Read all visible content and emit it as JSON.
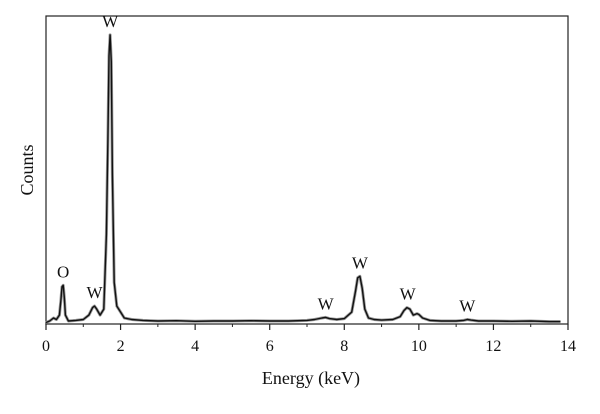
{
  "chart_data": {
    "type": "line",
    "title": "",
    "xlabel": "Energy (keV)",
    "ylabel": "Counts",
    "xlim": [
      0,
      14
    ],
    "ylim": [
      0,
      100
    ],
    "x_ticks": [
      "0",
      "2",
      "4",
      "6",
      "8",
      "10",
      "12",
      "14"
    ],
    "grid": false,
    "legend": "none",
    "line_color": "#111111",
    "series": [
      {
        "values": [
          [
            0.0,
            0.5
          ],
          [
            0.1,
            1.0
          ],
          [
            0.2,
            2.0
          ],
          [
            0.28,
            1.5
          ],
          [
            0.36,
            3.0
          ],
          [
            0.4,
            8.0
          ],
          [
            0.43,
            12.5
          ],
          [
            0.46,
            13.0
          ],
          [
            0.49,
            9.0
          ],
          [
            0.52,
            3.0
          ],
          [
            0.6,
            1.0
          ],
          [
            0.8,
            1.2
          ],
          [
            1.0,
            1.5
          ],
          [
            1.15,
            3.0
          ],
          [
            1.25,
            5.5
          ],
          [
            1.3,
            6.0
          ],
          [
            1.36,
            5.0
          ],
          [
            1.45,
            3.0
          ],
          [
            1.55,
            5.0
          ],
          [
            1.62,
            30.0
          ],
          [
            1.66,
            62.0
          ],
          [
            1.69,
            90.0
          ],
          [
            1.72,
            97.0
          ],
          [
            1.75,
            88.0
          ],
          [
            1.78,
            50.0
          ],
          [
            1.83,
            14.0
          ],
          [
            1.9,
            6.0
          ],
          [
            2.0,
            4.0
          ],
          [
            2.1,
            2.0
          ],
          [
            2.3,
            1.5
          ],
          [
            2.6,
            1.2
          ],
          [
            3.0,
            1.0
          ],
          [
            3.5,
            1.1
          ],
          [
            4.0,
            0.9
          ],
          [
            4.5,
            1.0
          ],
          [
            5.0,
            1.0
          ],
          [
            5.5,
            1.1
          ],
          [
            6.0,
            1.0
          ],
          [
            6.5,
            1.0
          ],
          [
            7.0,
            1.2
          ],
          [
            7.2,
            1.5
          ],
          [
            7.4,
            2.0
          ],
          [
            7.5,
            2.2
          ],
          [
            7.6,
            1.8
          ],
          [
            7.8,
            1.5
          ],
          [
            8.0,
            1.8
          ],
          [
            8.2,
            4.0
          ],
          [
            8.3,
            11.0
          ],
          [
            8.36,
            15.5
          ],
          [
            8.42,
            16.0
          ],
          [
            8.48,
            12.0
          ],
          [
            8.55,
            5.0
          ],
          [
            8.65,
            2.0
          ],
          [
            8.8,
            1.5
          ],
          [
            9.0,
            1.3
          ],
          [
            9.3,
            1.5
          ],
          [
            9.5,
            2.5
          ],
          [
            9.6,
            4.5
          ],
          [
            9.68,
            5.5
          ],
          [
            9.76,
            5.0
          ],
          [
            9.85,
            3.0
          ],
          [
            9.95,
            3.5
          ],
          [
            10.0,
            3.2
          ],
          [
            10.1,
            2.0
          ],
          [
            10.3,
            1.2
          ],
          [
            10.6,
            1.0
          ],
          [
            11.0,
            1.0
          ],
          [
            11.2,
            1.2
          ],
          [
            11.3,
            1.5
          ],
          [
            11.4,
            1.3
          ],
          [
            11.6,
            1.0
          ],
          [
            12.0,
            1.0
          ],
          [
            12.5,
            0.9
          ],
          [
            13.0,
            1.0
          ],
          [
            13.5,
            0.8
          ],
          [
            13.8,
            0.8
          ]
        ]
      }
    ],
    "annotations": [
      {
        "text": "O",
        "x": 0.46,
        "y": 13.0
      },
      {
        "text": "W",
        "x": 1.3,
        "y": 6.0
      },
      {
        "text": "W",
        "x": 1.72,
        "y": 97.0
      },
      {
        "text": "W",
        "x": 7.5,
        "y": 2.2
      },
      {
        "text": "W",
        "x": 8.42,
        "y": 16.0
      },
      {
        "text": "W",
        "x": 9.7,
        "y": 5.5
      },
      {
        "text": "W",
        "x": 11.3,
        "y": 1.5
      }
    ]
  }
}
